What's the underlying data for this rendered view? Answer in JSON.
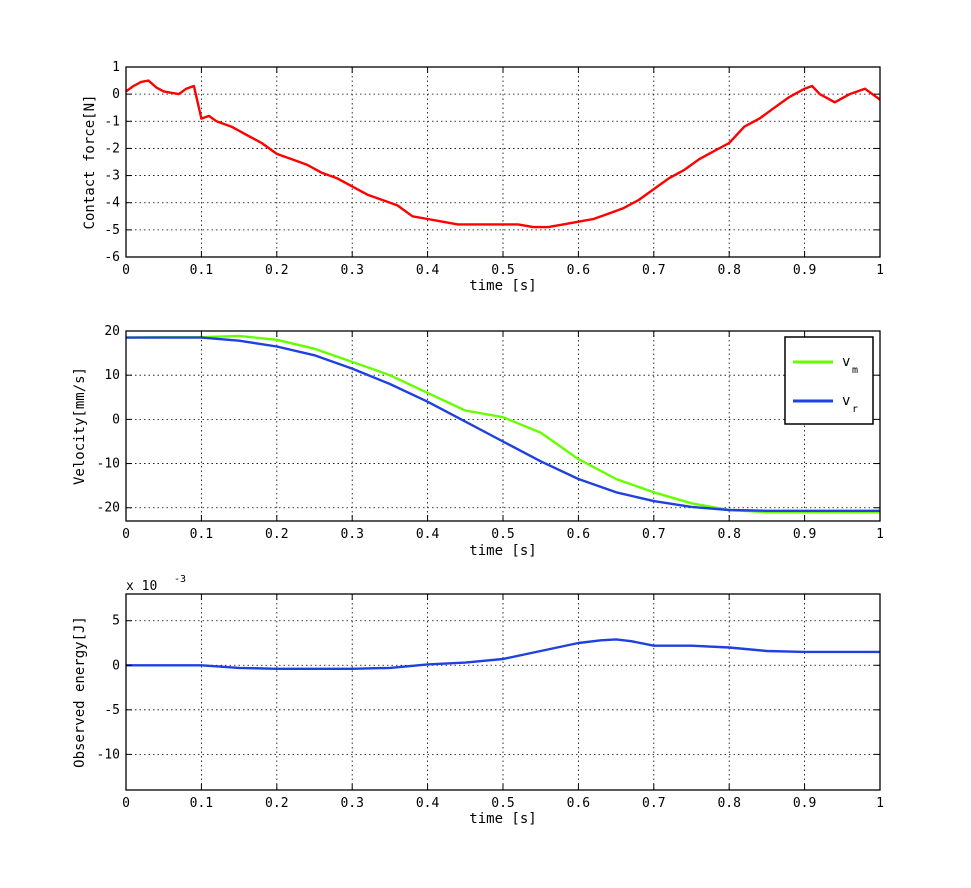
{
  "chart_data": [
    {
      "type": "line",
      "xlabel": "time [s]",
      "ylabel": "Contact force[N]",
      "xlim": [
        0,
        1
      ],
      "ylim": [
        -6,
        1
      ],
      "xticks": [
        "0",
        "0.1",
        "0.2",
        "0.3",
        "0.4",
        "0.5",
        "0.6",
        "0.7",
        "0.8",
        "0.9",
        "1"
      ],
      "yticks": [
        "1",
        "0",
        "-1",
        "-2",
        "-3",
        "-4",
        "-5",
        "-6"
      ],
      "grid": true,
      "series": [
        {
          "color": "#ff0000",
          "x": [
            0,
            0.01,
            0.02,
            0.03,
            0.04,
            0.05,
            0.06,
            0.07,
            0.08,
            0.09,
            0.1,
            0.11,
            0.12,
            0.14,
            0.16,
            0.18,
            0.2,
            0.22,
            0.24,
            0.26,
            0.28,
            0.3,
            0.32,
            0.34,
            0.36,
            0.38,
            0.4,
            0.42,
            0.44,
            0.46,
            0.48,
            0.5,
            0.52,
            0.54,
            0.56,
            0.58,
            0.6,
            0.62,
            0.64,
            0.66,
            0.68,
            0.7,
            0.72,
            0.74,
            0.76,
            0.78,
            0.8,
            0.82,
            0.84,
            0.86,
            0.88,
            0.9,
            0.91,
            0.92,
            0.94,
            0.96,
            0.98,
            1.0
          ],
          "y": [
            0.1,
            0.3,
            0.45,
            0.5,
            0.25,
            0.1,
            0.05,
            0.0,
            0.2,
            0.3,
            -0.9,
            -0.8,
            -1.0,
            -1.2,
            -1.5,
            -1.8,
            -2.2,
            -2.4,
            -2.6,
            -2.9,
            -3.1,
            -3.4,
            -3.7,
            -3.9,
            -4.1,
            -4.5,
            -4.6,
            -4.7,
            -4.8,
            -4.8,
            -4.8,
            -4.8,
            -4.8,
            -4.9,
            -4.9,
            -4.8,
            -4.7,
            -4.6,
            -4.4,
            -4.2,
            -3.9,
            -3.5,
            -3.1,
            -2.8,
            -2.4,
            -2.1,
            -1.8,
            -1.2,
            -0.9,
            -0.5,
            -0.1,
            0.2,
            0.3,
            0.0,
            -0.3,
            0.0,
            0.2,
            -0.2
          ]
        }
      ]
    },
    {
      "type": "line",
      "xlabel": "time [s]",
      "ylabel": "Velocity[mm/s]",
      "xlim": [
        0,
        1
      ],
      "ylim": [
        -23,
        20
      ],
      "xticks": [
        "0",
        "0.1",
        "0.2",
        "0.3",
        "0.4",
        "0.5",
        "0.6",
        "0.7",
        "0.8",
        "0.9",
        "1"
      ],
      "yticks": [
        "20",
        "10",
        "0",
        "-10",
        "-20"
      ],
      "grid": true,
      "legend": {
        "position": "top-right",
        "entries": [
          {
            "base": "v",
            "sub": "m",
            "color": "#66ff00"
          },
          {
            "base": "v",
            "sub": "r",
            "color": "#2040e0"
          }
        ]
      },
      "series": [
        {
          "name": "vm",
          "color": "#66ff00",
          "x": [
            0,
            0.05,
            0.1,
            0.15,
            0.2,
            0.25,
            0.3,
            0.35,
            0.4,
            0.45,
            0.5,
            0.55,
            0.6,
            0.65,
            0.7,
            0.75,
            0.8,
            0.85,
            0.9,
            0.95,
            1.0
          ],
          "y": [
            18.5,
            18.6,
            18.6,
            18.9,
            18.0,
            16.0,
            13.0,
            10.0,
            6.0,
            2.0,
            0.5,
            -3.0,
            -9.0,
            -13.5,
            -16.5,
            -19.0,
            -20.5,
            -21.0,
            -21.0,
            -21.0,
            -21.0
          ]
        },
        {
          "name": "vr",
          "color": "#2040e0",
          "x": [
            0,
            0.05,
            0.1,
            0.15,
            0.2,
            0.25,
            0.3,
            0.35,
            0.4,
            0.45,
            0.5,
            0.55,
            0.6,
            0.65,
            0.7,
            0.75,
            0.8,
            0.85,
            0.9,
            0.95,
            1.0
          ],
          "y": [
            18.5,
            18.5,
            18.5,
            17.8,
            16.5,
            14.5,
            11.5,
            8.0,
            4.0,
            -0.5,
            -5.0,
            -9.5,
            -13.5,
            -16.5,
            -18.5,
            -19.8,
            -20.5,
            -20.7,
            -20.7,
            -20.7,
            -20.7
          ]
        }
      ]
    },
    {
      "type": "line",
      "xlabel": "time [s]",
      "ylabel": "Observed energy[J]",
      "multiplier": "x 10",
      "multiplier_exp": "-3",
      "xlim": [
        0,
        1
      ],
      "ylim": [
        -14,
        8
      ],
      "xticks": [
        "0",
        "0.1",
        "0.2",
        "0.3",
        "0.4",
        "0.5",
        "0.6",
        "0.7",
        "0.8",
        "0.9",
        "1"
      ],
      "yticks": [
        "5",
        "0",
        "-5",
        "-10"
      ],
      "grid": true,
      "series": [
        {
          "color": "#2040e0",
          "x": [
            0,
            0.05,
            0.1,
            0.15,
            0.2,
            0.25,
            0.3,
            0.35,
            0.4,
            0.45,
            0.5,
            0.55,
            0.6,
            0.63,
            0.65,
            0.67,
            0.7,
            0.75,
            0.8,
            0.85,
            0.9,
            0.95,
            1.0
          ],
          "y": [
            0,
            0,
            0,
            -0.3,
            -0.4,
            -0.4,
            -0.4,
            -0.3,
            0.1,
            0.3,
            0.7,
            1.6,
            2.5,
            2.8,
            2.9,
            2.7,
            2.2,
            2.2,
            2.0,
            1.6,
            1.5,
            1.5,
            1.5
          ]
        }
      ]
    }
  ]
}
